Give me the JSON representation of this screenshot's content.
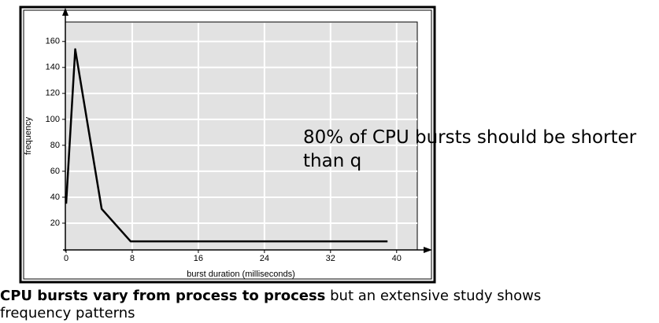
{
  "chart_data": {
    "type": "line",
    "xlabel": "burst duration (milliseconds)",
    "ylabel": "frequency",
    "x": [
      0,
      1.1,
      4.3,
      7.8,
      38.9
    ],
    "values": [
      35,
      154,
      31,
      6,
      6
    ],
    "color": "#000000",
    "xlim": [
      0,
      42.5
    ],
    "ylim": [
      0,
      175
    ],
    "xticks": [
      0,
      8,
      16,
      24,
      32,
      40
    ],
    "yticks": [
      20,
      40,
      60,
      80,
      100,
      120,
      140,
      160
    ],
    "grid": true
  },
  "annotation": "80% of CPU bursts should be shorter than q",
  "caption": {
    "bold": "CPU bursts vary from process to process",
    "text": " but an extensive study shows frequency patterns"
  }
}
